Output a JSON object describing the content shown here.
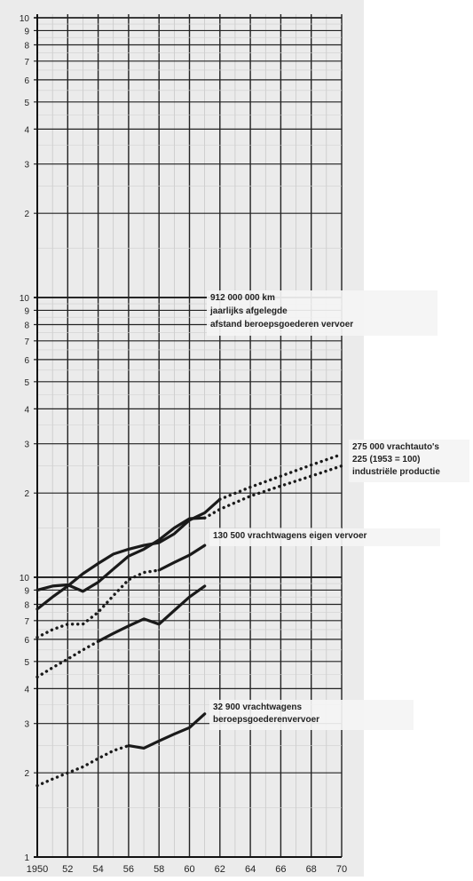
{
  "chart_data": {
    "type": "line",
    "scale": "log",
    "grid": true,
    "xlim": [
      1950,
      1970
    ],
    "x_ticks": [
      1950,
      1952,
      1954,
      1956,
      1958,
      1960,
      1962,
      1964,
      1966,
      1968,
      1970
    ],
    "x_tick_labels": [
      "1950",
      "52",
      "54",
      "56",
      "58",
      "60",
      "62",
      "64",
      "66",
      "68",
      "70"
    ],
    "y_tick_labels": [
      "1",
      "2",
      "3",
      "4",
      "5",
      "6",
      "7",
      "8",
      "9",
      "10"
    ],
    "annotations": [
      {
        "id": "afstand",
        "lines": [
          "912 000 000 km",
          "jaarlijks afgelegde",
          "afstand beroepsgoederen vervoer"
        ]
      },
      {
        "id": "vrachtauto",
        "lines": [
          "275 000 vrachtauto's",
          "225 (1953 = 100)",
          "industriële productie"
        ]
      },
      {
        "id": "eigen",
        "lines": [
          "130 500 vrachtwagens eigen vervoer"
        ]
      },
      {
        "id": "beroeps",
        "lines": [
          "32 900 vrachtwagens",
          "beroepsgoederenvervoer"
        ]
      }
    ],
    "series": [
      {
        "id": "afstand",
        "label_id": "afstand",
        "segments": [
          {
            "style": "dotted",
            "points": [
              [
                1950,
                4.4
              ],
              [
                1951,
                4.75
              ],
              [
                1952,
                5.1
              ],
              [
                1953,
                5.5
              ],
              [
                1954,
                5.9
              ]
            ]
          },
          {
            "style": "solid",
            "points": [
              [
                1954,
                5.9
              ],
              [
                1955,
                6.3
              ],
              [
                1956,
                6.7
              ],
              [
                1957,
                7.1
              ],
              [
                1958,
                6.8
              ],
              [
                1959,
                7.6
              ],
              [
                1960,
                8.5
              ],
              [
                1961,
                9.3
              ]
            ]
          }
        ]
      },
      {
        "id": "vrachtauto",
        "label_id": "vrachtauto",
        "segments": [
          {
            "style": "solid",
            "points": [
              [
                1950,
                7.7
              ],
              [
                1951,
                8.5
              ],
              [
                1952,
                9.3
              ],
              [
                1953,
                10.3
              ],
              [
                1954,
                11.2
              ],
              [
                1955,
                12.1
              ],
              [
                1956,
                12.6
              ],
              [
                1957,
                13.0
              ],
              [
                1958,
                13.3
              ],
              [
                1959,
                14.3
              ],
              [
                1960,
                16.0
              ],
              [
                1961,
                17.0
              ],
              [
                1962,
                19.0
              ]
            ]
          },
          {
            "style": "dotted",
            "points": [
              [
                1962,
                19.0
              ],
              [
                1964,
                21.0
              ],
              [
                1966,
                23.0
              ],
              [
                1968,
                25.2
              ],
              [
                1970,
                27.5
              ]
            ]
          }
        ]
      },
      {
        "id": "industrie",
        "label_id": "vrachtauto",
        "segments": [
          {
            "style": "solid",
            "points": [
              [
                1950,
                9.0
              ],
              [
                1951,
                9.3
              ],
              [
                1952,
                9.4
              ],
              [
                1953,
                8.9
              ],
              [
                1954,
                9.6
              ],
              [
                1955,
                10.7
              ],
              [
                1956,
                11.9
              ],
              [
                1957,
                12.6
              ],
              [
                1958,
                13.6
              ],
              [
                1959,
                15.0
              ],
              [
                1960,
                16.2
              ],
              [
                1961,
                16.3
              ]
            ]
          },
          {
            "style": "dotted",
            "points": [
              [
                1961,
                16.3
              ],
              [
                1962,
                17.5
              ],
              [
                1964,
                19.5
              ],
              [
                1966,
                21.2
              ],
              [
                1968,
                23.0
              ],
              [
                1970,
                25.0
              ]
            ]
          }
        ]
      },
      {
        "id": "eigen",
        "label_id": "eigen",
        "segments": [
          {
            "style": "dotted",
            "points": [
              [
                1950,
                6.1
              ],
              [
                1951,
                6.5
              ],
              [
                1952,
                6.8
              ],
              [
                1953,
                6.8
              ],
              [
                1954,
                7.5
              ],
              [
                1955,
                8.6
              ],
              [
                1956,
                9.8
              ],
              [
                1957,
                10.4
              ],
              [
                1958,
                10.6
              ]
            ]
          },
          {
            "style": "solid",
            "points": [
              [
                1958,
                10.6
              ],
              [
                1959,
                11.3
              ],
              [
                1960,
                12.0
              ],
              [
                1961,
                13.0
              ]
            ]
          }
        ]
      },
      {
        "id": "beroeps",
        "label_id": "beroeps",
        "segments": [
          {
            "style": "dotted",
            "points": [
              [
                1950,
                1.8
              ],
              [
                1951,
                1.9
              ],
              [
                1952,
                2.0
              ],
              [
                1953,
                2.1
              ],
              [
                1954,
                2.25
              ],
              [
                1955,
                2.4
              ],
              [
                1956,
                2.5
              ]
            ]
          },
          {
            "style": "solid",
            "points": [
              [
                1956,
                2.5
              ],
              [
                1957,
                2.45
              ],
              [
                1958,
                2.6
              ],
              [
                1959,
                2.75
              ],
              [
                1960,
                2.9
              ],
              [
                1961,
                3.25
              ]
            ]
          }
        ]
      }
    ]
  }
}
